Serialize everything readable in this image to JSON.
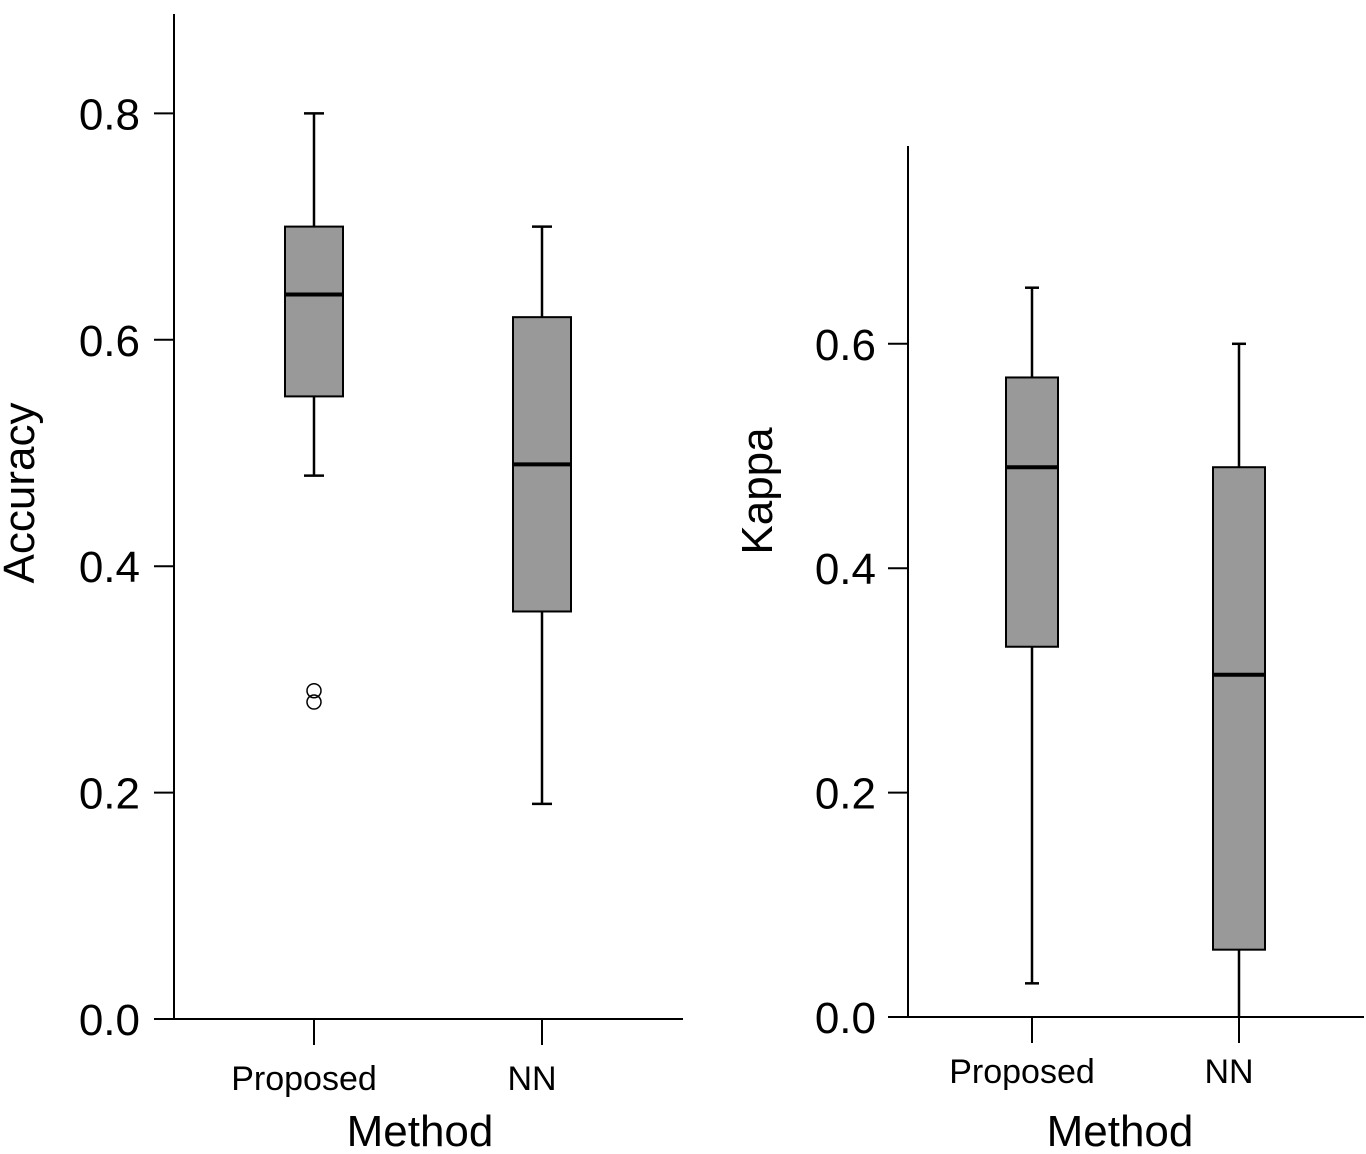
{
  "chart_data": [
    {
      "type": "boxplot",
      "xlabel": "Method",
      "ylabel": "Accuracy",
      "ylim": [
        0,
        0.88
      ],
      "yticks": [
        0.0,
        0.2,
        0.4,
        0.6,
        0.8
      ],
      "ytick_labels": [
        "0.0",
        "0.2",
        "0.4",
        "0.6",
        "0.8"
      ],
      "categories": [
        "Proposed",
        "NN"
      ],
      "boxes": [
        {
          "category": "Proposed",
          "whisker_low": 0.48,
          "q1": 0.55,
          "median": 0.64,
          "q3": 0.7,
          "whisker_high": 0.8,
          "outliers": [
            0.29,
            0.28
          ]
        },
        {
          "category": "NN",
          "whisker_low": 0.19,
          "q1": 0.36,
          "median": 0.49,
          "q3": 0.62,
          "whisker_high": 0.7,
          "outliers": []
        }
      ]
    },
    {
      "type": "boxplot",
      "xlabel": "Method",
      "ylabel": "Kappa",
      "ylim": [
        0,
        0.77
      ],
      "yticks": [
        0.0,
        0.2,
        0.4,
        0.6
      ],
      "ytick_labels": [
        "0.0",
        "0.2",
        "0.4",
        "0.6"
      ],
      "categories": [
        "Proposed",
        "NN"
      ],
      "boxes": [
        {
          "category": "Proposed",
          "whisker_low": 0.03,
          "q1": 0.33,
          "median": 0.49,
          "q3": 0.57,
          "whisker_high": 0.65,
          "outliers": []
        },
        {
          "category": "NN",
          "whisker_low": 0.0,
          "q1": 0.06,
          "median": 0.305,
          "q3": 0.49,
          "whisker_high": 0.6,
          "outliers": []
        }
      ]
    }
  ],
  "colors": {
    "box_fill": "#999999",
    "line": "#000000"
  }
}
